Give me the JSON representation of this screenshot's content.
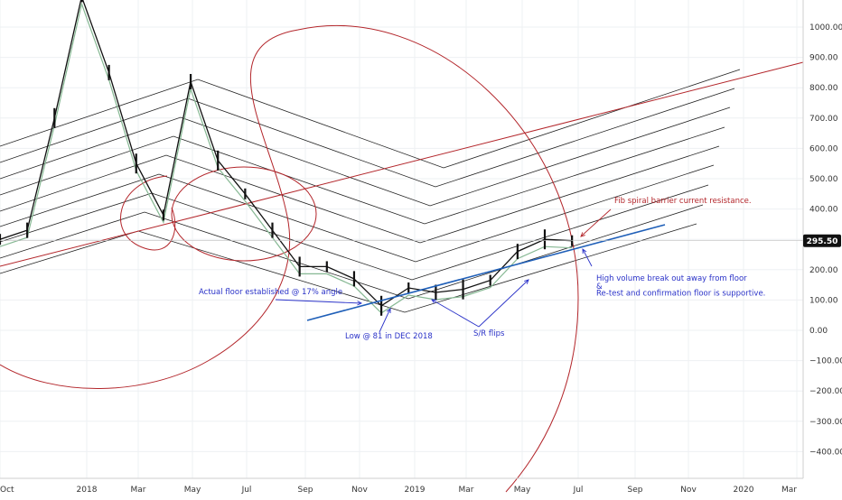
{
  "chart_data": {
    "type": "line",
    "title": "",
    "xlabel": "",
    "ylabel": "",
    "ylim": [
      -500,
      1100
    ],
    "y_ticks": [
      1000,
      900,
      800,
      700,
      600,
      500,
      400,
      300,
      200,
      100,
      0,
      -100,
      -200,
      -300,
      -400
    ],
    "y_tick_labels": [
      "1000.00",
      "900.00",
      "800.00",
      "700.00",
      "600.00",
      "500.00",
      "400.00",
      "300.00",
      "200.00",
      "100.00",
      "0.00",
      "−100.00",
      "−200.00",
      "−300.00",
      "−400.00"
    ],
    "x_ticks": [
      "Oct",
      "2018",
      "Mar",
      "May",
      "Jul",
      "Sep",
      "Nov",
      "2019",
      "Mar",
      "May",
      "Jul",
      "Sep",
      "Nov",
      "2020",
      "Mar"
    ],
    "current_price": 295.5,
    "current_price_label": "295.50",
    "grid": true,
    "price_series": [
      {
        "date": "2017-10",
        "value": 300
      },
      {
        "date": "2017-11",
        "value": 330
      },
      {
        "date": "2017-12",
        "value": 700
      },
      {
        "date": "2018-01",
        "value": 1100
      },
      {
        "date": "2018-02",
        "value": 850
      },
      {
        "date": "2018-03",
        "value": 550
      },
      {
        "date": "2018-04",
        "value": 380
      },
      {
        "date": "2018-05",
        "value": 820
      },
      {
        "date": "2018-06",
        "value": 560
      },
      {
        "date": "2018-07",
        "value": 450
      },
      {
        "date": "2018-08",
        "value": 330
      },
      {
        "date": "2018-09",
        "value": 210
      },
      {
        "date": "2018-10",
        "value": 210
      },
      {
        "date": "2018-11",
        "value": 170
      },
      {
        "date": "2018-12",
        "value": 81
      },
      {
        "date": "2019-01",
        "value": 140
      },
      {
        "date": "2019-02",
        "value": 125
      },
      {
        "date": "2019-03",
        "value": 135
      },
      {
        "date": "2019-04",
        "value": 165
      },
      {
        "date": "2019-05",
        "value": 260
      },
      {
        "date": "2019-06",
        "value": 300
      },
      {
        "date": "2019-07",
        "value": 295.5
      }
    ],
    "annotations": [
      {
        "text": "Fib spiral barrier current resistance.",
        "color": "#b3262b"
      },
      {
        "text": "Actual floor established @ 17% angle",
        "color": "#2a32c8"
      },
      {
        "text": "Low @ 81 in DEC 2018",
        "color": "#2a32c8"
      },
      {
        "text": "S/R flips",
        "color": "#2a32c8"
      },
      {
        "text": "High volume break out away from floor",
        "color": "#2a32c8"
      },
      {
        "text": "&",
        "color": "#2a32c8"
      },
      {
        "text": "Re-test and confirmation floor is supportive.",
        "color": "#2a32c8"
      }
    ],
    "colors": {
      "price": "#111111",
      "ma": "#86b893",
      "fan_lines": "#222222",
      "spiral": "#b3262b",
      "floor_line": "#1f5fb8",
      "annotation_text": "#2a32c8",
      "axis_text": "#333333"
    }
  }
}
